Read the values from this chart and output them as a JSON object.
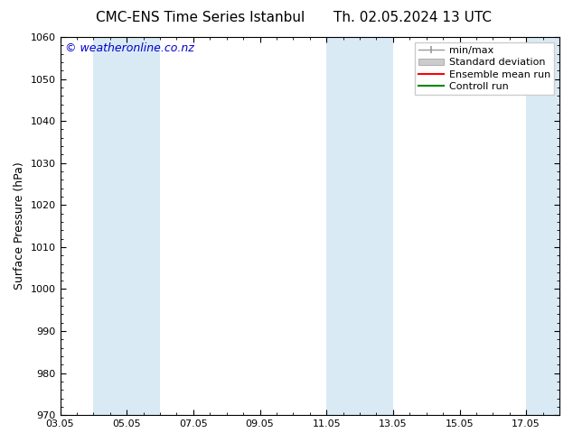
{
  "title_left": "CMC-ENS Time Series Istanbul",
  "title_right": "Th. 02.05.2024 13 UTC",
  "ylabel": "Surface Pressure (hPa)",
  "ylim": [
    970,
    1060
  ],
  "yticks": [
    970,
    980,
    990,
    1000,
    1010,
    1020,
    1030,
    1040,
    1050,
    1060
  ],
  "xtick_labels": [
    "03.05",
    "05.05",
    "07.05",
    "09.05",
    "11.05",
    "13.05",
    "15.05",
    "17.05"
  ],
  "xtick_positions": [
    0,
    2,
    4,
    6,
    8,
    10,
    12,
    14
  ],
  "x_min": 0,
  "x_max": 15,
  "shaded_bands": [
    {
      "x_start": 1.0,
      "x_end": 2.0
    },
    {
      "x_start": 2.0,
      "x_end": 3.0
    },
    {
      "x_start": 8.0,
      "x_end": 9.0
    },
    {
      "x_start": 9.0,
      "x_end": 10.0
    },
    {
      "x_start": 14.0,
      "x_end": 15.0
    }
  ],
  "shade_color": "#daeaf5",
  "background_color": "#ffffff",
  "watermark_text": "© weatheronline.co.nz",
  "watermark_color": "#0000cc",
  "legend_labels": [
    "min/max",
    "Standard deviation",
    "Ensemble mean run",
    "Controll run"
  ],
  "legend_colors": [
    "#999999",
    "#cccccc",
    "#ff0000",
    "#008800"
  ],
  "title_fontsize": 11,
  "ylabel_fontsize": 9,
  "tick_fontsize": 8,
  "watermark_fontsize": 9,
  "legend_fontsize": 8
}
